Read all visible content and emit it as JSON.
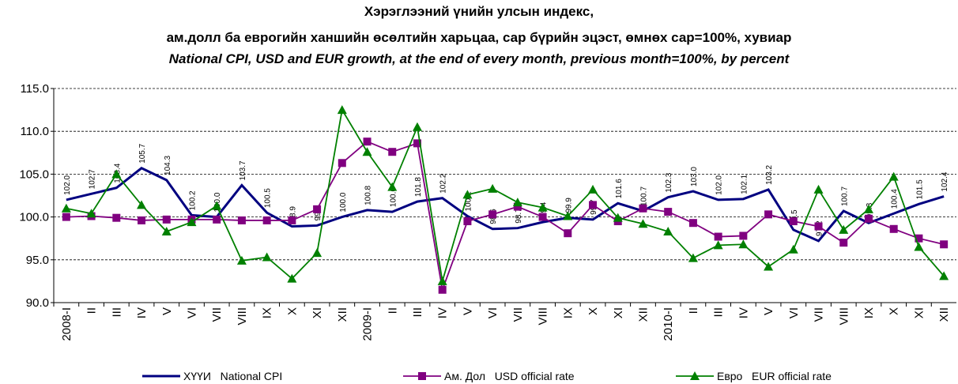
{
  "chart_data": {
    "type": "line",
    "title": "Хэрэглээний үнийн улсын индекс,",
    "subtitle": "ам.долл ба еврогийн ханшийн өсөлтийн харьцаа, сар бүрийн эцэст, өмнөх сар=100%, хувиар",
    "subtitle_en": "National CPI, USD and EUR growth, at the end of every month, previous month=100%, by percent",
    "categories": [
      "2008-I",
      "II",
      "III",
      "IV",
      "V",
      "VI",
      "VII",
      "VIII",
      "IX",
      "X",
      "XI",
      "XII",
      "2009-I",
      "II",
      "III",
      "IV",
      "V",
      "VI",
      "VII",
      "VIII",
      "IX",
      "X",
      "XI",
      "XII",
      "2010-I",
      "II",
      "III",
      "IV",
      "V",
      "VI",
      "VII",
      "VIII",
      "IX",
      "X",
      "XI",
      "XII"
    ],
    "series": [
      {
        "name": "ХҮҮИ   National CPI",
        "color": "#000080",
        "marker": "none",
        "values": [
          102.0,
          102.7,
          103.4,
          105.7,
          104.3,
          100.2,
          100.0,
          103.7,
          100.5,
          98.9,
          99.0,
          100.0,
          100.8,
          100.6,
          101.8,
          102.2,
          100.1,
          98.6,
          98.7,
          99.4,
          99.9,
          99.7,
          101.6,
          100.7,
          102.3,
          103.0,
          102.0,
          102.1,
          103.2,
          98.5,
          97.2,
          100.7,
          99.3,
          100.4,
          101.5,
          102.4
        ],
        "value_labels": [
          "102.0",
          "102.7",
          "103.4",
          "105.7",
          "104.3",
          "100.2",
          "100.0",
          "103.7",
          "100.5",
          "98.9",
          "99.0",
          "100.0",
          "100.8",
          "100.6",
          "101.8",
          "102.2",
          "100.1",
          "98.6",
          "98.7",
          "99.4",
          "99.9",
          "99.7",
          "101.6",
          "100.7",
          "102.3",
          "103.0",
          "102.0",
          "102.1",
          "103.2",
          "98.5",
          "97.2",
          "100.7",
          "99.3",
          "100.4",
          "101.5",
          "102.4"
        ]
      },
      {
        "name": "Ам. Дол   USD official rate",
        "color": "#800080",
        "marker": "square",
        "values": [
          100.0,
          100.1,
          99.9,
          99.6,
          99.7,
          99.7,
          99.7,
          99.6,
          99.6,
          99.6,
          100.9,
          106.3,
          108.8,
          107.6,
          108.6,
          91.5,
          99.5,
          100.3,
          101.2,
          100.0,
          98.1,
          101.4,
          99.5,
          101.0,
          100.6,
          99.3,
          97.7,
          97.8,
          100.3,
          99.5,
          98.9,
          97.0,
          99.8,
          98.6,
          97.5,
          96.8
        ]
      },
      {
        "name": "Евро   EUR official rate",
        "color": "#008000",
        "marker": "triangle",
        "values": [
          101.0,
          100.4,
          105.0,
          101.4,
          98.3,
          99.4,
          101.3,
          94.9,
          95.3,
          92.8,
          95.8,
          112.5,
          107.6,
          103.5,
          110.5,
          92.5,
          102.6,
          103.3,
          101.7,
          101.1,
          100.1,
          103.2,
          99.9,
          99.2,
          98.3,
          95.2,
          96.7,
          96.8,
          94.2,
          96.2,
          103.2,
          98.5,
          100.9,
          104.7,
          96.5,
          93.1
        ]
      }
    ],
    "ylim": [
      90,
      115
    ],
    "yticks": [
      {
        "value": 90,
        "label": "90.0"
      },
      {
        "value": 95,
        "label": "95.0"
      },
      {
        "value": 100,
        "label": "100.0"
      },
      {
        "value": 105,
        "label": "105.0"
      },
      {
        "value": 110,
        "label": "110.0"
      },
      {
        "value": 115,
        "label": "115.0"
      }
    ],
    "grid": true,
    "legend": "bottom"
  }
}
